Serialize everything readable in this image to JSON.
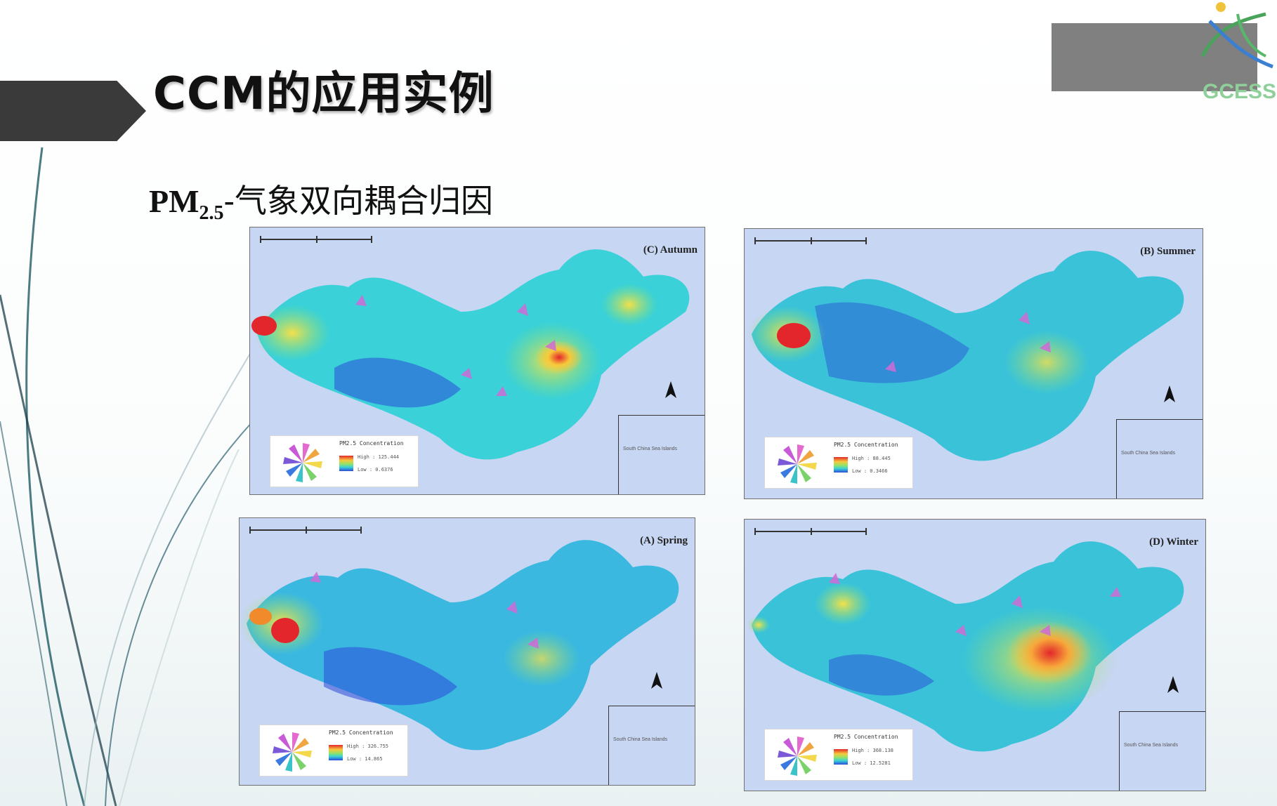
{
  "slide": {
    "title": "CCM的应用实例",
    "subtitle_prefix": "PM",
    "subtitle_sub": "2.5",
    "subtitle_rest": "-气象双向耦合归因"
  },
  "logo": {
    "text": "GCESS"
  },
  "maps": [
    {
      "label": "(C) Autumn",
      "legend_title": "PM2.5 Concentration",
      "legend_high": "High : 125.444",
      "legend_low": "Low : 0.6376",
      "inset_text": "South China Sea Islands"
    },
    {
      "label": "(B) Summer",
      "legend_title": "PM2.5 Concentration",
      "legend_high": "High : 88.445",
      "legend_low": "Low : 0.3466",
      "inset_text": "South China Sea Islands"
    },
    {
      "label": "(A) Spring",
      "legend_title": "PM2.5 Concentration",
      "legend_high": "High : 326.755",
      "legend_low": "Low : 14.865",
      "inset_text": "South China Sea Islands"
    },
    {
      "label": "(D) Winter",
      "legend_title": "PM2.5 Concentration",
      "legend_high": "High : 368.138",
      "legend_low": "Low : 12.5281",
      "inset_text": "South China Sea Islands"
    }
  ],
  "colors": {
    "title_bar": "#3a3a3a",
    "map_background": "#c7d6f2",
    "heat_low": "#2a4bd8",
    "heat_mid": "#3ad1d8",
    "heat_high": "#e3262b"
  }
}
